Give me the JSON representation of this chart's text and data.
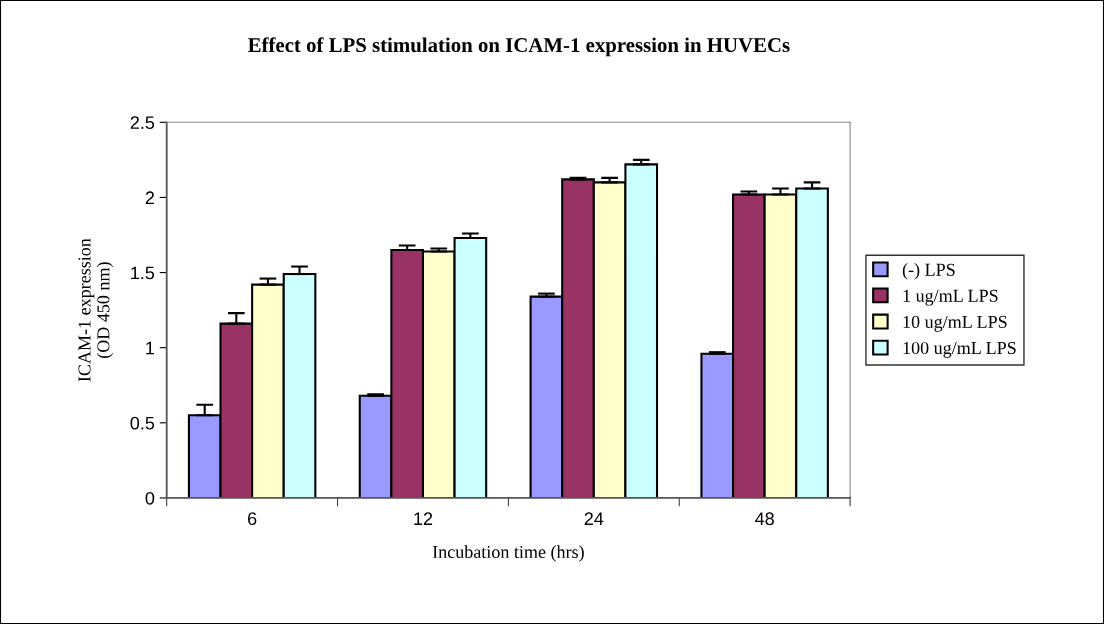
{
  "chart_data": {
    "type": "bar",
    "title": "Effect of LPS stimulation on ICAM-1 expression in HUVECs",
    "xlabel": "Incubation time (hrs)",
    "ylabel": "ICAM-1 expression\n(OD 450 nm)",
    "categories": [
      "6",
      "12",
      "24",
      "48"
    ],
    "series": [
      {
        "name": "(-) LPS",
        "color": "#9999ff",
        "values": [
          0.55,
          0.68,
          1.34,
          0.96
        ],
        "errors": [
          [
            0.55,
            0.62
          ],
          [
            0.68,
            0.69
          ],
          [
            1.34,
            1.36
          ],
          [
            0.96,
            0.97
          ]
        ]
      },
      {
        "name": "1 ug/mL LPS",
        "color": "#993366",
        "values": [
          1.16,
          1.65,
          2.12,
          2.02
        ],
        "errors": [
          [
            1.16,
            1.23
          ],
          [
            1.65,
            1.68
          ],
          [
            2.12,
            2.13
          ],
          [
            2.02,
            2.04
          ]
        ]
      },
      {
        "name": "10 ug/mL LPS",
        "color": "#ffffcc",
        "values": [
          1.42,
          1.64,
          2.1,
          2.02
        ],
        "errors": [
          [
            1.42,
            1.46
          ],
          [
            1.64,
            1.66
          ],
          [
            2.1,
            2.13
          ],
          [
            2.02,
            2.06
          ]
        ]
      },
      {
        "name": "100 ug/mL LPS",
        "color": "#ccffff",
        "values": [
          1.49,
          1.73,
          2.22,
          2.06
        ],
        "errors": [
          [
            1.49,
            1.54
          ],
          [
            1.73,
            1.76
          ],
          [
            2.22,
            2.25
          ],
          [
            2.06,
            2.1
          ]
        ]
      }
    ],
    "ylim": [
      0,
      2.5
    ],
    "yticks": [
      0,
      0.5,
      1,
      1.5,
      2,
      2.5
    ],
    "grid": false,
    "legend": "right"
  }
}
